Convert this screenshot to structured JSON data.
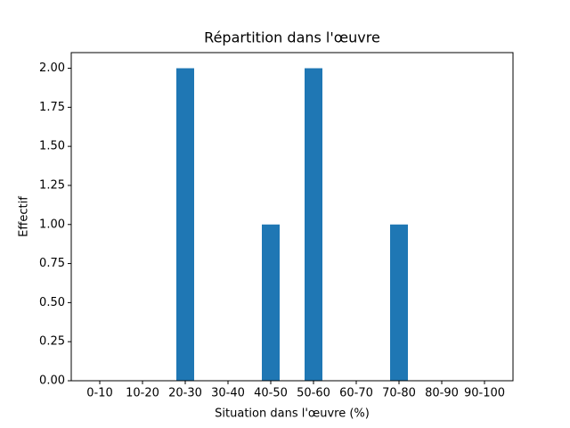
{
  "chart_data": {
    "type": "bar",
    "title": "Répartition dans l'œuvre",
    "x_label": "Situation dans l'œuvre (%)",
    "y_label": "Effectif",
    "categories": [
      "0-10",
      "10-20",
      "20-30",
      "30-40",
      "40-50",
      "50-60",
      "60-70",
      "70-80",
      "80-90",
      "90-100"
    ],
    "values": [
      0,
      0,
      2,
      0,
      1,
      2,
      0,
      1,
      0,
      0
    ],
    "color": "#1f77b4",
    "ylim": [
      0,
      2.1
    ],
    "yticks": [
      {
        "value": 0,
        "label": "0.00"
      },
      {
        "value": 0.25,
        "label": "0.25"
      },
      {
        "value": 0.5,
        "label": "0.50"
      },
      {
        "value": 0.75,
        "label": "0.75"
      },
      {
        "value": 1,
        "label": "1.00"
      },
      {
        "value": 1.25,
        "label": "1.25"
      },
      {
        "value": 1.5,
        "label": "1.50"
      },
      {
        "value": 1.75,
        "label": "1.75"
      },
      {
        "value": 2,
        "label": "2.00"
      }
    ],
    "grid": false
  }
}
